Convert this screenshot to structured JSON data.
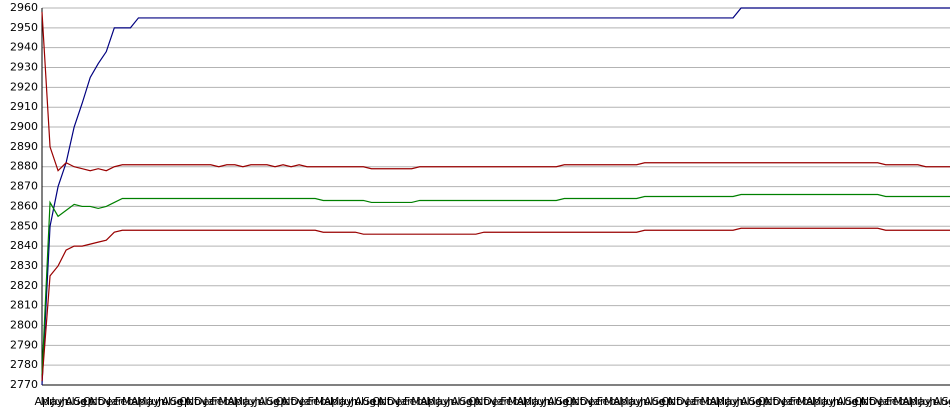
{
  "chart_data": {
    "type": "line",
    "categories": [
      "Apr",
      "May",
      "Jun",
      "Jul",
      "Aug",
      "Sep",
      "Oct",
      "Nov",
      "Dec",
      "Jan",
      "Feb",
      "Mar",
      "Apr",
      "May",
      "Jun",
      "Jul",
      "Aug",
      "Sep",
      "Oct",
      "Nov",
      "Dec",
      "Jan",
      "Feb",
      "Mar",
      "Apr",
      "May",
      "Jun",
      "Jul",
      "Aug",
      "Sep",
      "Oct",
      "Nov",
      "Dec",
      "Jan",
      "Feb",
      "Mar",
      "Apr",
      "May",
      "Jun",
      "Jul",
      "Aug",
      "Sep",
      "Oct",
      "Nov",
      "Dec",
      "Jan",
      "Feb",
      "Mar",
      "Apr",
      "May",
      "Jun",
      "Jul",
      "Aug",
      "Sep",
      "Oct",
      "Nov",
      "Dec",
      "Jan",
      "Feb",
      "Mar",
      "Apr",
      "May",
      "Jun",
      "Jul",
      "Aug",
      "Sep",
      "Oct",
      "Nov",
      "Dec",
      "Jan",
      "Feb",
      "Mar",
      "Apr",
      "May",
      "Jun",
      "Jul",
      "Aug",
      "Sep",
      "Oct",
      "Nov",
      "Dec",
      "Jan",
      "Feb",
      "Mar",
      "Apr",
      "May",
      "Jun",
      "Jul",
      "Aug",
      "Sep",
      "Oct",
      "Nov",
      "Dec",
      "Jan",
      "Feb",
      "Mar",
      "Apr",
      "May",
      "Jun",
      "Jul",
      "Aug",
      "Sep",
      "Oct",
      "Nov",
      "Dec",
      "Jan",
      "Feb",
      "Mar",
      "Apr",
      "May",
      "Jun",
      "Jul",
      "Aug",
      "Sep"
    ],
    "series": [
      {
        "color": "#000080",
        "values": [
          2770,
          2850,
          2870,
          2882,
          2900,
          2912,
          2925,
          2932,
          2938,
          2950,
          2950,
          2950,
          2955,
          2955,
          2955,
          2955,
          2955,
          2955,
          2955,
          2955,
          2955,
          2955,
          2955,
          2955,
          2955,
          2955,
          2955,
          2955,
          2955,
          2955,
          2955,
          2955,
          2955,
          2955,
          2955,
          2955,
          2955,
          2955,
          2955,
          2955,
          2955,
          2955,
          2955,
          2955,
          2955,
          2955,
          2955,
          2955,
          2955,
          2955,
          2955,
          2955,
          2955,
          2955,
          2955,
          2955,
          2955,
          2955,
          2955,
          2955,
          2955,
          2955,
          2955,
          2955,
          2955,
          2955,
          2955,
          2955,
          2955,
          2955,
          2955,
          2955,
          2955,
          2955,
          2955,
          2955,
          2955,
          2955,
          2955,
          2955,
          2955,
          2955,
          2955,
          2955,
          2955,
          2955,
          2955,
          2960,
          2960,
          2960,
          2960,
          2960,
          2960,
          2960,
          2960,
          2960,
          2960,
          2960,
          2960,
          2960,
          2960,
          2960,
          2960,
          2960,
          2960,
          2960,
          2960,
          2960,
          2960,
          2960,
          2960,
          2960,
          2960,
          2960
        ]
      },
      {
        "color": "#990000",
        "values": [
          2958,
          2890,
          2878,
          2882,
          2880,
          2879,
          2878,
          2879,
          2878,
          2880,
          2881,
          2881,
          2881,
          2881,
          2881,
          2881,
          2881,
          2881,
          2881,
          2881,
          2881,
          2881,
          2880,
          2881,
          2881,
          2880,
          2881,
          2881,
          2881,
          2880,
          2881,
          2880,
          2881,
          2880,
          2880,
          2880,
          2880,
          2880,
          2880,
          2880,
          2880,
          2879,
          2879,
          2879,
          2879,
          2879,
          2879,
          2880,
          2880,
          2880,
          2880,
          2880,
          2880,
          2880,
          2880,
          2880,
          2880,
          2880,
          2880,
          2880,
          2880,
          2880,
          2880,
          2880,
          2880,
          2881,
          2881,
          2881,
          2881,
          2881,
          2881,
          2881,
          2881,
          2881,
          2881,
          2882,
          2882,
          2882,
          2882,
          2882,
          2882,
          2882,
          2882,
          2882,
          2882,
          2882,
          2882,
          2882,
          2882,
          2882,
          2882,
          2882,
          2882,
          2882,
          2882,
          2882,
          2882,
          2882,
          2882,
          2882,
          2882,
          2882,
          2882,
          2882,
          2882,
          2881,
          2881,
          2881,
          2881,
          2881,
          2880,
          2880,
          2880,
          2880
        ]
      },
      {
        "color": "#008000",
        "values": [
          2775,
          2862,
          2855,
          2858,
          2861,
          2860,
          2860,
          2859,
          2860,
          2862,
          2864,
          2864,
          2864,
          2864,
          2864,
          2864,
          2864,
          2864,
          2864,
          2864,
          2864,
          2864,
          2864,
          2864,
          2864,
          2864,
          2864,
          2864,
          2864,
          2864,
          2864,
          2864,
          2864,
          2864,
          2864,
          2863,
          2863,
          2863,
          2863,
          2863,
          2863,
          2862,
          2862,
          2862,
          2862,
          2862,
          2862,
          2863,
          2863,
          2863,
          2863,
          2863,
          2863,
          2863,
          2863,
          2863,
          2863,
          2863,
          2863,
          2863,
          2863,
          2863,
          2863,
          2863,
          2863,
          2864,
          2864,
          2864,
          2864,
          2864,
          2864,
          2864,
          2864,
          2864,
          2864,
          2865,
          2865,
          2865,
          2865,
          2865,
          2865,
          2865,
          2865,
          2865,
          2865,
          2865,
          2865,
          2866,
          2866,
          2866,
          2866,
          2866,
          2866,
          2866,
          2866,
          2866,
          2866,
          2866,
          2866,
          2866,
          2866,
          2866,
          2866,
          2866,
          2866,
          2865,
          2865,
          2865,
          2865,
          2865,
          2865,
          2865,
          2865,
          2865
        ]
      },
      {
        "color": "#990000",
        "values": [
          2772,
          2825,
          2830,
          2838,
          2840,
          2840,
          2841,
          2842,
          2843,
          2847,
          2848,
          2848,
          2848,
          2848,
          2848,
          2848,
          2848,
          2848,
          2848,
          2848,
          2848,
          2848,
          2848,
          2848,
          2848,
          2848,
          2848,
          2848,
          2848,
          2848,
          2848,
          2848,
          2848,
          2848,
          2848,
          2847,
          2847,
          2847,
          2847,
          2847,
          2846,
          2846,
          2846,
          2846,
          2846,
          2846,
          2846,
          2846,
          2846,
          2846,
          2846,
          2846,
          2846,
          2846,
          2846,
          2847,
          2847,
          2847,
          2847,
          2847,
          2847,
          2847,
          2847,
          2847,
          2847,
          2847,
          2847,
          2847,
          2847,
          2847,
          2847,
          2847,
          2847,
          2847,
          2847,
          2848,
          2848,
          2848,
          2848,
          2848,
          2848,
          2848,
          2848,
          2848,
          2848,
          2848,
          2848,
          2849,
          2849,
          2849,
          2849,
          2849,
          2849,
          2849,
          2849,
          2849,
          2849,
          2849,
          2849,
          2849,
          2849,
          2849,
          2849,
          2849,
          2849,
          2848,
          2848,
          2848,
          2848,
          2848,
          2848,
          2848,
          2848,
          2848
        ]
      }
    ],
    "ylim": [
      2770,
      2960
    ],
    "yticks": [
      2770,
      2780,
      2790,
      2800,
      2810,
      2820,
      2830,
      2840,
      2850,
      2860,
      2870,
      2880,
      2890,
      2900,
      2910,
      2920,
      2930,
      2940,
      2950,
      2960
    ],
    "grid": true
  }
}
